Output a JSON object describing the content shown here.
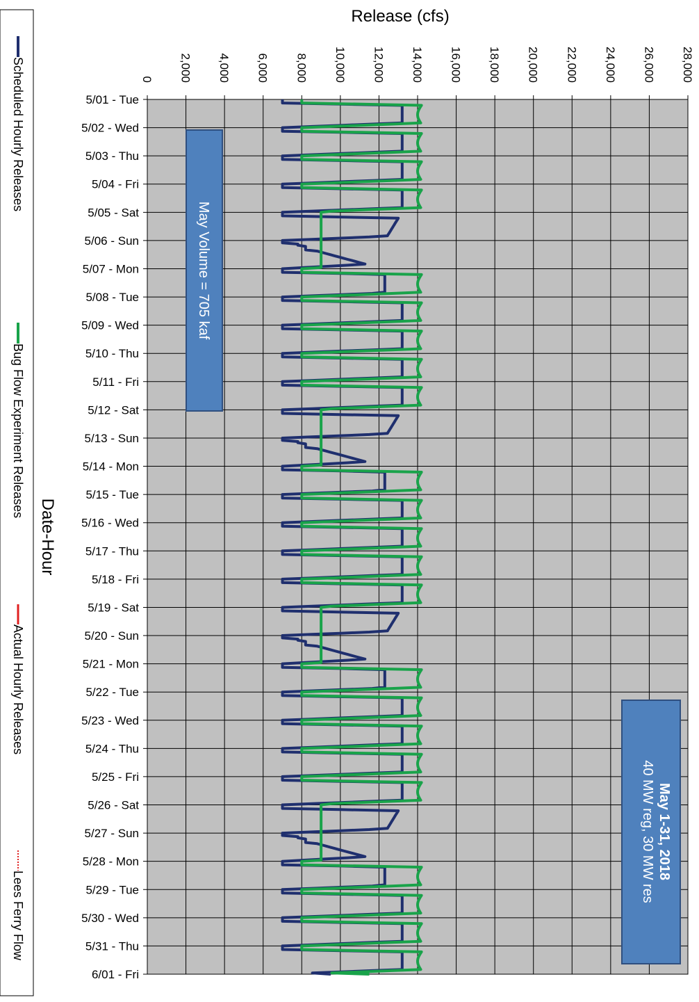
{
  "chart_data": {
    "type": "line",
    "orientation": "rotated-90-clockwise",
    "xlabel": "Date-Hour",
    "ylabel": "Release (cfs)",
    "ylim": [
      0,
      28000
    ],
    "y_ticks": [
      "0",
      "2,000",
      "4,000",
      "6,000",
      "8,000",
      "10,000",
      "12,000",
      "14,000",
      "16,000",
      "18,000",
      "20,000",
      "22,000",
      "24,000",
      "26,000",
      "28,000"
    ],
    "categories": [
      "5/01 - Tue",
      "5/02 - Wed",
      "5/03 - Thu",
      "5/04 - Fri",
      "5/05 - Sat",
      "5/06 - Sun",
      "5/07 - Mon",
      "5/08 - Tue",
      "5/09 - Wed",
      "5/10 - Thu",
      "5/11 - Fri",
      "5/12 - Sat",
      "5/13 - Sun",
      "5/14 - Mon",
      "5/15 - Tue",
      "5/16 - Wed",
      "5/17 - Thu",
      "5/18 - Fri",
      "5/19 - Sat",
      "5/20 - Sun",
      "5/21 - Mon",
      "5/22 - Tue",
      "5/23 - Wed",
      "5/24 - Thu",
      "5/25 - Fri",
      "5/26 - Sat",
      "5/27 - Sun",
      "5/28 - Mon",
      "5/29 - Tue",
      "5/30 - Wed",
      "5/31 - Thu",
      "6/01 - Fri"
    ],
    "grid": true,
    "legend_position": "left",
    "series": [
      {
        "name": "Scheduled Hourly Releases",
        "color": "#1f2f6e",
        "weekday_profile": {
          "min": 7000,
          "max": 13200
        },
        "weekend_profile": {
          "sat_min": 7000,
          "sat_max": 13000,
          "sun_min": 7000,
          "sun_max": 11500,
          "mon_peak": 12300
        }
      },
      {
        "name": "Bug Flow Experiment Releases",
        "color": "#19a34a",
        "weekday_profile": {
          "min": 8000,
          "max": 14200
        },
        "weekend_value": 9000
      },
      {
        "name": "Actual Hourly Releases",
        "color": "#e02020"
      },
      {
        "name": "Lees Ferry Flow",
        "color": "#e02020",
        "dash": "dotted"
      }
    ],
    "annotations": [
      {
        "name": "volume-box",
        "text": "May Volume = 705 kaf"
      },
      {
        "name": "period-box",
        "line1": "May 1-31, 2018",
        "line2": "40 MW reg, 30 MW res"
      }
    ]
  },
  "colors": {
    "plot_background": "#c0c0c0",
    "annotation_fill": "#4f81bd",
    "annotation_border": "#2f4f7f"
  }
}
